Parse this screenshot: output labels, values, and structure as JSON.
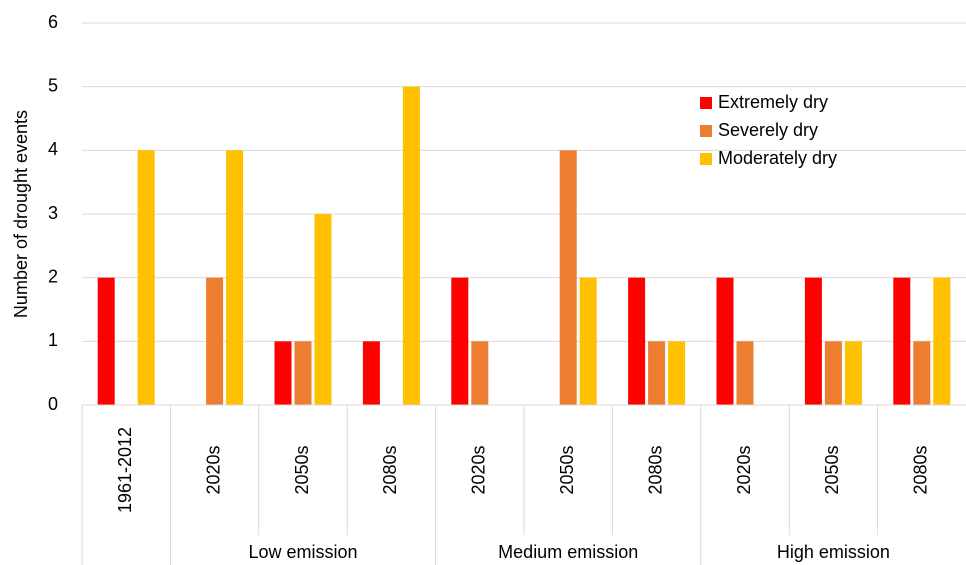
{
  "chart_data": {
    "type": "bar",
    "y_label": "Number of drought events",
    "category_groups": [
      {
        "name": null,
        "categories": [
          "1961-2012"
        ]
      },
      {
        "name": "Low emission",
        "categories": [
          "2020s",
          "2050s",
          "2080s"
        ]
      },
      {
        "name": "Medium emission",
        "categories": [
          "2020s",
          "2050s",
          "2080s"
        ]
      },
      {
        "name": "High emission",
        "categories": [
          "2020s",
          "2050s",
          "2080s"
        ]
      }
    ],
    "series": [
      {
        "name": "Extremely dry",
        "color": "#ff0000",
        "values": [
          2,
          0,
          1,
          1,
          2,
          0,
          2,
          2,
          2,
          2
        ]
      },
      {
        "name": "Severely dry",
        "color": "#ed7d31",
        "values": [
          0,
          2,
          1,
          0,
          1,
          4,
          1,
          1,
          1,
          1
        ]
      },
      {
        "name": "Moderately dry",
        "color": "#ffc000",
        "values": [
          4,
          4,
          3,
          5,
          0,
          2,
          1,
          0,
          1,
          2
        ]
      }
    ],
    "ylim": [
      0,
      6
    ],
    "yticks": [
      0,
      1,
      2,
      3,
      4,
      5,
      6
    ],
    "grid": true,
    "legend": "upper right"
  }
}
